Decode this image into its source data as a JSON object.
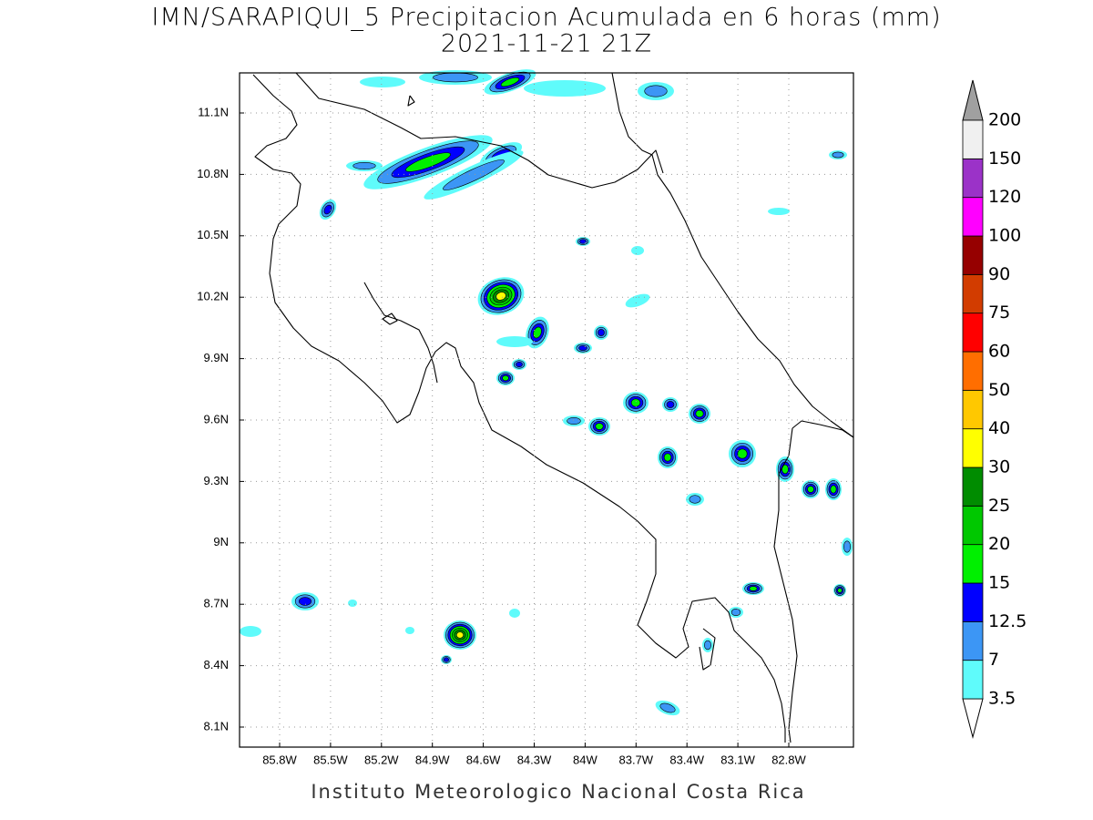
{
  "title": {
    "line1": "IMN/SARAPIQUI_5 Precipitacion Acumulada en 6 horas (mm)",
    "line2": "2021-11-21 21Z"
  },
  "map": {
    "lon_labels": [
      "85.8W",
      "85.5W",
      "85.2W",
      "84.9W",
      "84.6W",
      "84.3W",
      "84W",
      "83.7W",
      "83.4W",
      "83.1W",
      "82.8W"
    ],
    "lat_labels": [
      "11.1N",
      "10.8N",
      "10.5N",
      "10.2N",
      "9.9N",
      "9.6N",
      "9.3N",
      "9N",
      "8.7N",
      "8.4N",
      "8.1N"
    ]
  },
  "colorbar": {
    "levels": [
      3.5,
      7,
      12.5,
      15,
      20,
      25,
      30,
      40,
      50,
      60,
      75,
      90,
      100,
      120,
      150,
      200
    ],
    "colors": [
      "#5ffbfb",
      "#3c96f5",
      "#0000ff",
      "#00f000",
      "#00c800",
      "#008c00",
      "#ffff00",
      "#ffc800",
      "#ff6e00",
      "#ff0000",
      "#d23c00",
      "#960000",
      "#ff00ff",
      "#9b32c8",
      "#f0f0f0"
    ],
    "under_color": "#ffffff",
    "over_color": "#a0a0a0"
  },
  "footer": "Instituto Meteorologico Nacional Costa Rica"
}
